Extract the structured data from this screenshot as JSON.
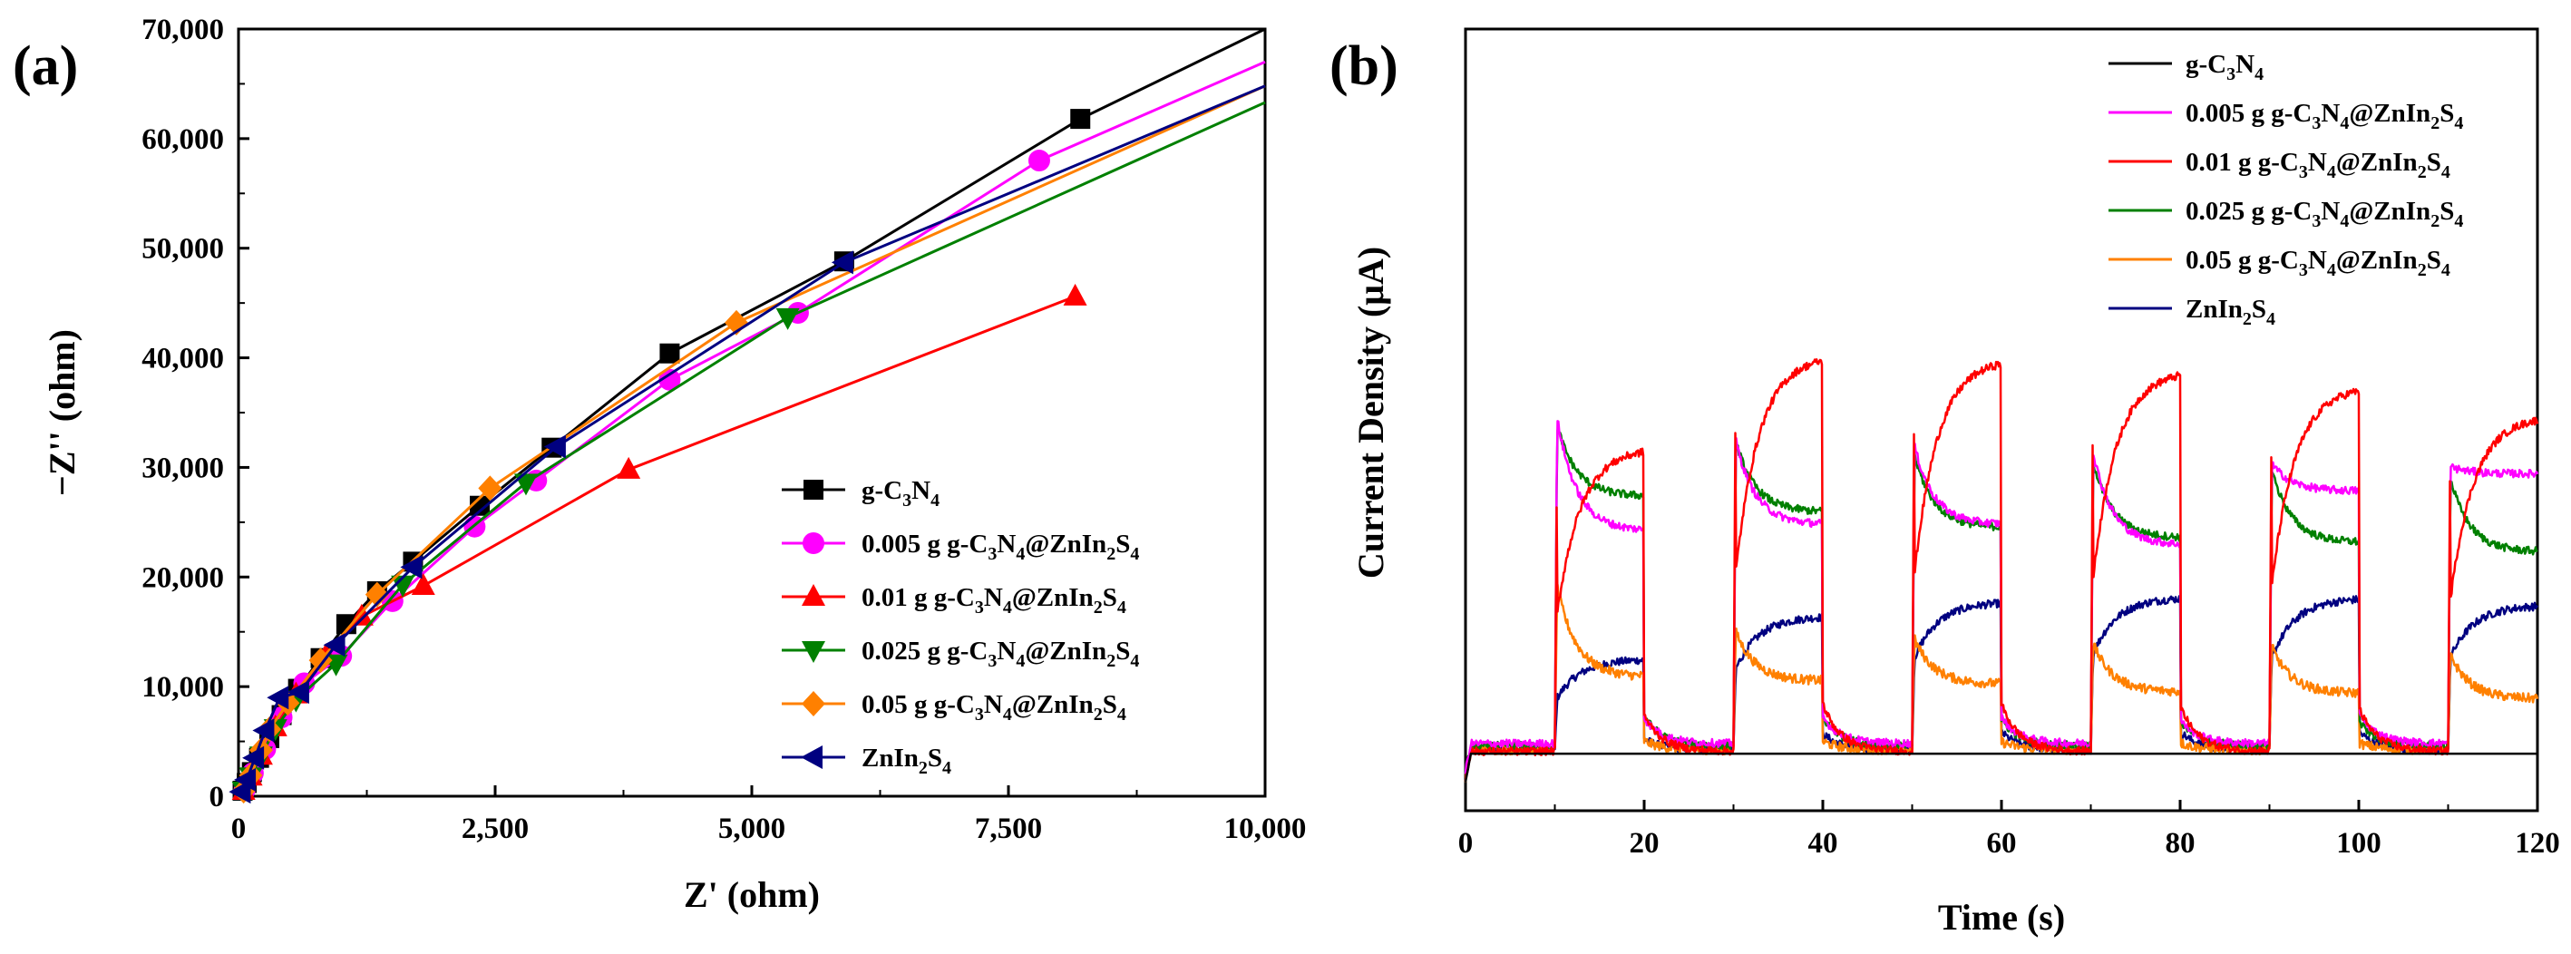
{
  "chart_data": [
    {
      "panel": "(a)",
      "type": "line",
      "xlabel": "Z' (ohm)",
      "ylabel": "−Z'' (ohm)",
      "xlim": [
        0,
        10000
      ],
      "ylim": [
        0,
        70000
      ],
      "xticks": [
        0,
        2500,
        5000,
        7500,
        10000
      ],
      "xtick_labels": [
        "0",
        "2,500",
        "5,000",
        "7,500",
        "10,000"
      ],
      "yticks": [
        0,
        10000,
        20000,
        30000,
        40000,
        50000,
        60000,
        70000
      ],
      "ytick_labels": [
        "0",
        "10,000",
        "20,000",
        "30,000",
        "40,000",
        "50,000",
        "60,000",
        "70,000"
      ],
      "legend_position": "bottom-right",
      "series": [
        {
          "name": "g-C3N4",
          "label": "g-C",
          "s1": "3",
          "mid": "N",
          "s2": "4",
          "suffix": "",
          "tail": [],
          "color": "#000000",
          "marker": "square",
          "x": [
            40,
            80,
            130,
            200,
            300,
            420,
            580,
            800,
            1050,
            1350,
            1700,
            2350,
            3050,
            4200,
            5900,
            8200,
            10000
          ],
          "y": [
            500,
            1200,
            2200,
            3500,
            5300,
            7400,
            9800,
            12600,
            15700,
            18700,
            21400,
            26500,
            31800,
            40400,
            48800,
            61800,
            70000
          ]
        },
        {
          "name": "0.005 g g-C3N4@ZnIn2S4",
          "label": "0.005 g g-C",
          "s1": "3",
          "mid": "N",
          "s2": "4",
          "suffix": "@ZnIn",
          "tail": [
            [
              "2",
              "S"
            ],
            [
              "4",
              ""
            ]
          ],
          "color": "#ff00ff",
          "marker": "circle",
          "x": [
            60,
            140,
            260,
            420,
            640,
            1000,
            1500,
            2300,
            2900,
            4200,
            5450,
            7800,
            10000
          ],
          "y": [
            600,
            2100,
            4300,
            7200,
            10300,
            12800,
            17800,
            24600,
            28800,
            38000,
            44100,
            58000,
            67000
          ]
        },
        {
          "name": "0.01 g g-C3N4@ZnIn2S4",
          "label": "0.01 g g-C",
          "s1": "3",
          "mid": "N",
          "s2": "4",
          "suffix": "@ZnIn",
          "tail": [
            [
              "2",
              "S"
            ],
            [
              "4",
              ""
            ]
          ],
          "color": "#ff0000",
          "marker": "triangle-up",
          "x": [
            50,
            120,
            220,
            360,
            560,
            850,
            1200,
            1800,
            3800,
            8150
          ],
          "y": [
            500,
            1800,
            3700,
            6300,
            9300,
            12800,
            16400,
            19200,
            29800,
            45600
          ]
        },
        {
          "name": "0.025 g g-C3N4@ZnIn2S4",
          "label": "0.025 g g-C",
          "s1": "3",
          "mid": "N",
          "s2": "4",
          "suffix": "@ZnIn",
          "tail": [
            [
              "2",
              "S"
            ],
            [
              "4",
              ""
            ]
          ],
          "color": "#008000",
          "marker": "triangle-down",
          "x": [
            50,
            120,
            220,
            360,
            560,
            950,
            1600,
            2800,
            5350,
            10000
          ],
          "y": [
            500,
            1800,
            3700,
            6200,
            8800,
            12100,
            19300,
            28600,
            43700,
            63300
          ]
        },
        {
          "name": "0.05 g g-C3N4@ZnIn2S4",
          "label": "0.05 g g-C",
          "s1": "3",
          "mid": "N",
          "s2": "4",
          "suffix": "@ZnIn",
          "tail": [
            [
              "2",
              "S"
            ],
            [
              "4",
              ""
            ]
          ],
          "color": "#ff8000",
          "marker": "diamond",
          "x": [
            50,
            120,
            220,
            300,
            480,
            800,
            1350,
            2450,
            4850,
            10000
          ],
          "y": [
            500,
            1900,
            4200,
            6100,
            8500,
            12400,
            18400,
            28100,
            43200,
            64800
          ]
        },
        {
          "name": "ZnIn2S4",
          "label": "ZnIn",
          "s1": "2",
          "mid": "S",
          "s2": "4",
          "suffix": "",
          "tail": [],
          "color": "#000080",
          "marker": "triangle-left",
          "x": [
            30,
            80,
            160,
            260,
            400,
            600,
            950,
            1700,
            3100,
            5900,
            10000
          ],
          "y": [
            400,
            1500,
            3500,
            6000,
            9000,
            9500,
            13800,
            20900,
            31900,
            48700,
            64800
          ]
        }
      ]
    },
    {
      "panel": "(b)",
      "type": "line",
      "xlabel": "Time (s)",
      "ylabel": "Current Density (μA)",
      "xlim": [
        0,
        120
      ],
      "ylim": [
        0,
        100
      ],
      "xticks": [
        0,
        20,
        40,
        60,
        80,
        100,
        120
      ],
      "xtick_labels": [
        "0",
        "20",
        "40",
        "60",
        "80",
        "100",
        "120"
      ],
      "legend_position": "top-right",
      "light_on": [
        10,
        30,
        50,
        70,
        90,
        110
      ],
      "light_off": [
        20,
        40,
        60,
        80,
        100
      ],
      "series": [
        {
          "name": "g-C3N4",
          "label": "g-C",
          "s1": "3",
          "mid": "N",
          "s2": "4",
          "suffix": "",
          "tail": [],
          "color": "#000000",
          "baseline": 7.3,
          "peak": [
            7.3,
            7.3,
            7.3,
            7.3,
            7.3,
            7.3
          ],
          "end": [
            7.3,
            7.3,
            7.3,
            7.3,
            7.3,
            7.3
          ],
          "shape": "flat",
          "noise": 0
        },
        {
          "name": "0.005 g g-C3N4@ZnIn2S4",
          "label": "0.005 g g-C",
          "s1": "3",
          "mid": "N",
          "s2": "4",
          "suffix": "@ZnIn",
          "tail": [
            [
              "2",
              "S"
            ],
            [
              "4",
              ""
            ]
          ],
          "color": "#ff00ff",
          "baseline": 8.6,
          "peak": [
            50.3,
            47.4,
            46.7,
            45.9,
            44.4,
            44.0
          ],
          "end": [
            35.8,
            36.6,
            36.6,
            34.0,
            40.9,
            43.1
          ],
          "shape": "decay",
          "noise": 0.5
        },
        {
          "name": "0.01 g g-C3N4@ZnIn2S4",
          "label": "0.01 g g-C",
          "s1": "3",
          "mid": "N",
          "s2": "4",
          "suffix": "@ZnIn",
          "tail": [
            [
              "2",
              "S"
            ],
            [
              "4",
              ""
            ]
          ],
          "color": "#ff0000",
          "baseline": 7.6,
          "peak": [
            46.4,
            58.2,
            57.8,
            56.3,
            54.3,
            50.5
          ],
          "end": [
            46.4,
            58.2,
            57.8,
            56.3,
            54.3,
            50.5
          ],
          "shape": "rise",
          "noise": 0.5
        },
        {
          "name": "0.025 g g-C3N4@ZnIn2S4",
          "label": "0.025 g g-C",
          "s1": "3",
          "mid": "N",
          "s2": "4",
          "suffix": "@ZnIn",
          "tail": [
            [
              "2",
              "S"
            ],
            [
              "4",
              ""
            ]
          ],
          "color": "#008000",
          "baseline": 8.3,
          "peak": [
            49.3,
            47.3,
            45.5,
            44.7,
            43.7,
            42.5
          ],
          "end": [
            40.2,
            38.2,
            36.2,
            34.9,
            34.3,
            33.1
          ],
          "shape": "decay",
          "noise": 0.5
        },
        {
          "name": "0.05 g g-C3N4@ZnIn2S4",
          "label": "0.05 g g-C",
          "s1": "3",
          "mid": "N",
          "s2": "4",
          "suffix": "@ZnIn",
          "tail": [
            [
              "2",
              "S"
            ],
            [
              "4",
              ""
            ]
          ],
          "color": "#ff8000",
          "baseline": 7.8,
          "peak": [
            28.6,
            22.9,
            22.0,
            21.4,
            21.0,
            20.0
          ],
          "end": [
            17.1,
            16.6,
            16.2,
            15.2,
            15.0,
            14.3
          ],
          "shape": "decay",
          "noise": 0.6
        },
        {
          "name": "ZnIn2S4",
          "label": "ZnIn",
          "s1": "2",
          "mid": "S",
          "s2": "4",
          "suffix": "",
          "tail": [],
          "color": "#000080",
          "baseline": 7.8,
          "peak": [
            14.4,
            18.1,
            19.5,
            20.0,
            19.5,
            19.6
          ],
          "end": [
            19.4,
            24.9,
            26.7,
            27.3,
            27.2,
            26.3
          ],
          "shape": "rise",
          "noise": 0.5
        }
      ]
    }
  ]
}
